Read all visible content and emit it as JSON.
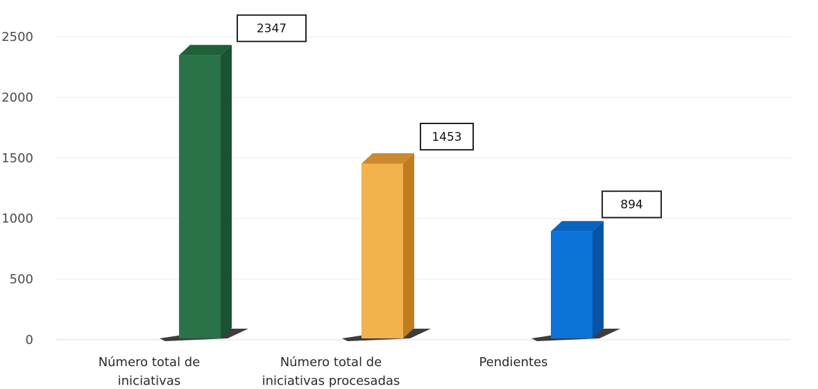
{
  "chart_data": {
    "type": "bar",
    "style": "3d-column",
    "categories": [
      [
        "Número total de",
        "iniciativas"
      ],
      [
        "Número  total de",
        "iniciativas procesadas"
      ],
      [
        "Pendientes"
      ]
    ],
    "values": [
      2347,
      1453,
      894
    ],
    "value_labels": [
      "2347",
      "1453",
      "894"
    ],
    "bar_colors": [
      {
        "front": "#2a7349",
        "side": "#1a5232",
        "top": "#1f6038"
      },
      {
        "front": "#f2b24c",
        "side": "#c07d1f",
        "top": "#cc8a30"
      },
      {
        "front": "#0b72d8",
        "side": "#0854a4",
        "top": "#0a63bf"
      }
    ],
    "ylim": [
      0,
      2500
    ],
    "yticks": [
      0,
      500,
      1000,
      1500,
      2000,
      2500
    ],
    "grid": true,
    "legend": "none",
    "title": "",
    "xlabel": "",
    "ylabel": ""
  }
}
